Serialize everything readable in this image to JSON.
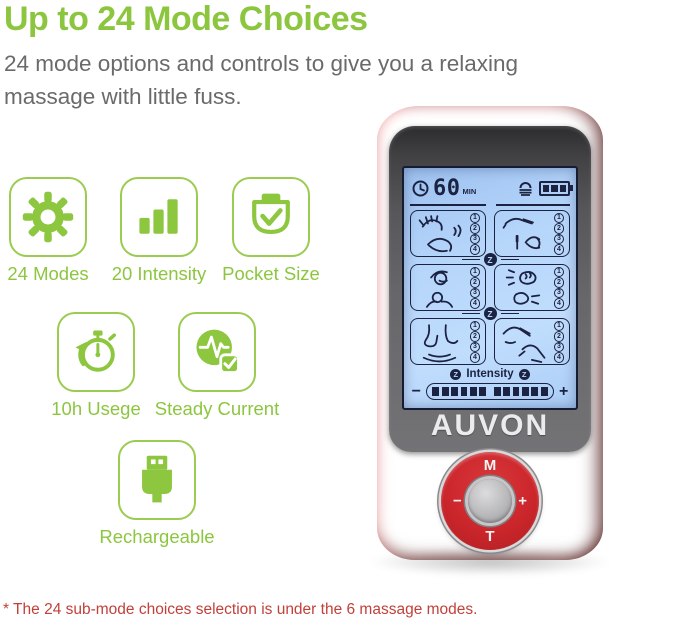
{
  "header": {
    "title": "Up to 24 Mode Choices",
    "subtitle": "24 mode options and controls to give you a relaxing massage with little fuss."
  },
  "colors": {
    "accent_green": "#8cc63f",
    "note_red": "#c2403a",
    "device_red": "#d62b30",
    "lcd_blue": "#b5d5fa",
    "lcd_ink": "#1c2342"
  },
  "features": [
    {
      "icon": "gear-icon",
      "label": "24 Modes"
    },
    {
      "icon": "intensity-bars-icon",
      "label": "20 Intensity"
    },
    {
      "icon": "pocket-check-icon",
      "label": "Pocket Size"
    },
    {
      "icon": "stopwatch-icon",
      "label": "10h Usege"
    },
    {
      "icon": "steady-current-icon",
      "label": "Steady Current"
    },
    {
      "icon": "usb-plug-icon",
      "label": "Rechargeable"
    }
  ],
  "device": {
    "brand": "AUVON",
    "screen": {
      "timer": {
        "icon": "clock-icon",
        "value": "60",
        "unit": "MIN"
      },
      "bell_icon": "output-bell-icon",
      "battery": {
        "icon": "battery-icon",
        "segments": 3
      },
      "z_symbol": "Z",
      "modes": [
        {
          "pictogram": "hands-tapping",
          "options": [
            "1",
            "2",
            "3",
            "4"
          ]
        },
        {
          "pictogram": "acupuncture-hand",
          "options": [
            "1",
            "2",
            "3",
            "4"
          ]
        },
        {
          "pictogram": "shoulder-kneading",
          "options": [
            "1",
            "2",
            "3",
            "4"
          ]
        },
        {
          "pictogram": "fist-knocking",
          "options": [
            "1",
            "2",
            "3",
            "4"
          ]
        },
        {
          "pictogram": "foot-massage",
          "options": [
            "1",
            "2",
            "3",
            "4"
          ]
        },
        {
          "pictogram": "gua-sha-scraping",
          "options": [
            "1",
            "2",
            "3",
            "4"
          ]
        }
      ],
      "intensity": {
        "label": "Intensity",
        "minus": "−",
        "plus": "+",
        "segments": 12
      }
    },
    "controls": {
      "mode": "M",
      "minus": "−",
      "plus": "+",
      "timer": "T"
    }
  },
  "footnote": "* The 24 sub-mode choices selection is under the 6 massage modes."
}
